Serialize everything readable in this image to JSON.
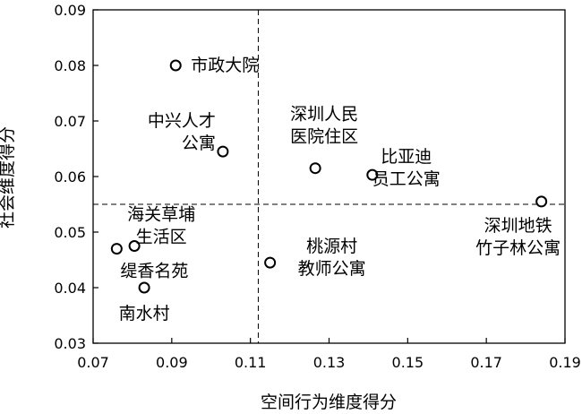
{
  "chart_data": {
    "type": "scatter",
    "xlabel": "空间行为维度得分",
    "ylabel": "社会维度得分",
    "xlim": [
      0.07,
      0.19
    ],
    "ylim": [
      0.03,
      0.09
    ],
    "xticks": [
      "0.07",
      "0.09",
      "0.11",
      "0.13",
      "0.15",
      "0.17",
      "0.19"
    ],
    "yticks": [
      "0.03",
      "0.04",
      "0.05",
      "0.06",
      "0.07",
      "0.08",
      "0.09"
    ],
    "reference_lines": {
      "x": 0.112,
      "y": 0.055
    },
    "grid": false,
    "marker": "hollow-circle",
    "points": [
      {
        "label": [
          "市政大院"
        ],
        "x": 0.091,
        "y": 0.08
      },
      {
        "label": [
          "中兴人才",
          "公寓"
        ],
        "x": 0.103,
        "y": 0.0645
      },
      {
        "label": [
          "深圳人民",
          "医院住区"
        ],
        "x": 0.1265,
        "y": 0.0615
      },
      {
        "label": [
          "比亚迪",
          "员工公寓"
        ],
        "x": 0.141,
        "y": 0.0603
      },
      {
        "label": [
          "深圳地铁",
          "竹子林公寓"
        ],
        "x": 0.184,
        "y": 0.0555
      },
      {
        "label": [
          "海关草埔",
          "生活区"
        ],
        "x": 0.0805,
        "y": 0.0475
      },
      {
        "label": [
          "缇香名苑"
        ],
        "x": 0.076,
        "y": 0.047
      },
      {
        "label": [
          "南水村"
        ],
        "x": 0.083,
        "y": 0.04
      },
      {
        "label": [
          "桃源村",
          "教师公寓"
        ],
        "x": 0.115,
        "y": 0.0445
      }
    ]
  }
}
